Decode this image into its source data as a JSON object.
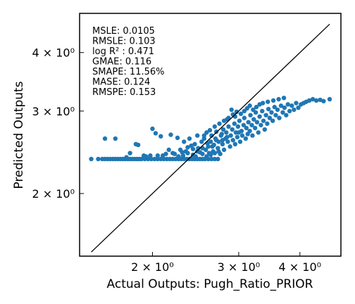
{
  "chart_data": {
    "type": "scatter",
    "xlabel": "Actual Outputs: Pugh_Ratio_PRIOR",
    "ylabel": "Predicted Outputs",
    "xscale": "log",
    "yscale": "log",
    "xlim": [
      1.42,
      4.85
    ],
    "ylim": [
      1.47,
      4.85
    ],
    "x_ticks": [
      {
        "value": 2,
        "label": "2 × 10⁰"
      },
      {
        "value": 3,
        "label": "3 × 10⁰"
      },
      {
        "value": 4,
        "label": "4 × 10⁰"
      }
    ],
    "y_ticks": [
      {
        "value": 2,
        "label": "2 × 10⁰"
      },
      {
        "value": 3,
        "label": "3 × 10⁰"
      },
      {
        "value": 4,
        "label": "4 × 10⁰"
      }
    ],
    "grid": false,
    "point_color": "#1f77b4",
    "line_color": "#000000",
    "identity_line": {
      "from": 1.5,
      "to": 4.6
    },
    "metrics": [
      "MSLE: 0.0105",
      "RMSLE: 0.103",
      "log R² : 0.471",
      "GMAE: 0.116",
      "SMAPE: 11.56%",
      "MASE: 0.124",
      "RMSPE: 0.153"
    ],
    "points": [
      [
        1.5,
        2.37
      ],
      [
        1.55,
        2.37
      ],
      [
        1.58,
        2.37
      ],
      [
        1.6,
        2.37
      ],
      [
        1.62,
        2.37
      ],
      [
        1.64,
        2.37
      ],
      [
        1.66,
        2.37
      ],
      [
        1.68,
        2.37
      ],
      [
        1.7,
        2.37
      ],
      [
        1.72,
        2.37
      ],
      [
        1.74,
        2.37
      ],
      [
        1.76,
        2.37
      ],
      [
        1.78,
        2.37
      ],
      [
        1.8,
        2.37
      ],
      [
        1.82,
        2.37
      ],
      [
        1.84,
        2.37
      ],
      [
        1.86,
        2.37
      ],
      [
        1.88,
        2.37
      ],
      [
        1.9,
        2.37
      ],
      [
        1.93,
        2.37
      ],
      [
        1.96,
        2.37
      ],
      [
        1.99,
        2.37
      ],
      [
        2.02,
        2.37
      ],
      [
        2.05,
        2.37
      ],
      [
        2.08,
        2.37
      ],
      [
        2.11,
        2.37
      ],
      [
        2.14,
        2.37
      ],
      [
        2.17,
        2.37
      ],
      [
        2.2,
        2.37
      ],
      [
        2.23,
        2.37
      ],
      [
        2.26,
        2.37
      ],
      [
        2.29,
        2.37
      ],
      [
        2.32,
        2.37
      ],
      [
        2.35,
        2.37
      ],
      [
        2.38,
        2.37
      ],
      [
        2.41,
        2.37
      ],
      [
        2.44,
        2.37
      ],
      [
        2.47,
        2.37
      ],
      [
        2.5,
        2.37
      ],
      [
        2.53,
        2.37
      ],
      [
        2.56,
        2.37
      ],
      [
        2.6,
        2.37
      ],
      [
        2.64,
        2.37
      ],
      [
        2.68,
        2.37
      ],
      [
        2.72,
        2.37
      ],
      [
        1.6,
        2.62
      ],
      [
        1.68,
        2.62
      ],
      [
        1.77,
        2.39
      ],
      [
        1.8,
        2.44
      ],
      [
        1.85,
        2.55
      ],
      [
        1.87,
        2.54
      ],
      [
        1.92,
        2.41
      ],
      [
        1.94,
        2.4
      ],
      [
        1.98,
        2.41
      ],
      [
        2.0,
        2.75
      ],
      [
        2.03,
        2.69
      ],
      [
        2.05,
        2.41
      ],
      [
        2.08,
        2.65
      ],
      [
        2.1,
        2.41
      ],
      [
        2.13,
        2.43
      ],
      [
        2.16,
        2.48
      ],
      [
        2.18,
        2.67
      ],
      [
        2.2,
        2.44
      ],
      [
        2.22,
        2.43
      ],
      [
        2.25,
        2.63
      ],
      [
        2.28,
        2.48
      ],
      [
        2.3,
        2.45
      ],
      [
        2.32,
        2.58
      ],
      [
        2.34,
        2.46
      ],
      [
        2.36,
        2.51
      ],
      [
        2.38,
        2.62
      ],
      [
        2.4,
        2.53
      ],
      [
        2.42,
        2.42
      ],
      [
        2.44,
        2.55
      ],
      [
        2.45,
        2.4
      ],
      [
        2.47,
        2.66
      ],
      [
        2.48,
        2.5
      ],
      [
        2.5,
        2.45
      ],
      [
        2.52,
        2.58
      ],
      [
        2.53,
        2.43
      ],
      [
        2.55,
        2.62
      ],
      [
        2.57,
        2.48
      ],
      [
        2.58,
        2.7
      ],
      [
        2.6,
        2.52
      ],
      [
        2.61,
        2.44
      ],
      [
        2.63,
        2.58
      ],
      [
        2.64,
        2.66
      ],
      [
        2.66,
        2.46
      ],
      [
        2.67,
        2.54
      ],
      [
        2.69,
        2.62
      ],
      [
        2.7,
        2.71
      ],
      [
        2.72,
        2.5
      ],
      [
        2.73,
        2.58
      ],
      [
        2.75,
        2.43
      ],
      [
        2.76,
        2.66
      ],
      [
        2.78,
        2.55
      ],
      [
        2.79,
        2.74
      ],
      [
        2.8,
        2.48
      ],
      [
        2.82,
        2.62
      ],
      [
        2.83,
        2.7
      ],
      [
        2.85,
        2.58
      ],
      [
        2.86,
        2.78
      ],
      [
        2.88,
        2.52
      ],
      [
        2.89,
        2.66
      ],
      [
        2.91,
        2.74
      ],
      [
        2.92,
        2.6
      ],
      [
        2.94,
        2.82
      ],
      [
        2.95,
        2.55
      ],
      [
        2.96,
        2.7
      ],
      [
        2.98,
        2.64
      ],
      [
        2.99,
        2.78
      ],
      [
        3.01,
        2.86
      ],
      [
        3.02,
        2.58
      ],
      [
        3.04,
        2.72
      ],
      [
        3.05,
        2.66
      ],
      [
        3.07,
        2.8
      ],
      [
        3.08,
        2.9
      ],
      [
        3.1,
        2.62
      ],
      [
        3.11,
        2.76
      ],
      [
        3.13,
        2.68
      ],
      [
        3.14,
        2.84
      ],
      [
        3.16,
        2.72
      ],
      [
        3.17,
        2.94
      ],
      [
        3.19,
        2.8
      ],
      [
        3.2,
        2.66
      ],
      [
        3.22,
        2.88
      ],
      [
        3.24,
        2.76
      ],
      [
        3.25,
        2.98
      ],
      [
        3.27,
        2.84
      ],
      [
        3.29,
        2.7
      ],
      [
        3.31,
        2.92
      ],
      [
        3.33,
        2.8
      ],
      [
        3.35,
        3.0
      ],
      [
        3.37,
        2.86
      ],
      [
        3.39,
        2.74
      ],
      [
        3.41,
        2.94
      ],
      [
        3.43,
        2.82
      ],
      [
        3.45,
        3.03
      ],
      [
        3.47,
        2.9
      ],
      [
        3.5,
        2.98
      ],
      [
        3.52,
        2.86
      ],
      [
        3.55,
        3.06
      ],
      [
        3.57,
        2.94
      ],
      [
        3.6,
        3.02
      ],
      [
        3.63,
        2.9
      ],
      [
        3.66,
        3.08
      ],
      [
        3.69,
        2.98
      ],
      [
        3.72,
        3.05
      ],
      [
        3.75,
        2.94
      ],
      [
        3.78,
        3.1
      ],
      [
        3.81,
        3.0
      ],
      [
        3.85,
        3.08
      ],
      [
        3.89,
        3.02
      ],
      [
        3.93,
        3.12
      ],
      [
        3.97,
        3.05
      ],
      [
        4.02,
        3.1
      ],
      [
        4.07,
        3.12
      ],
      [
        4.12,
        3.14
      ],
      [
        4.18,
        3.16
      ],
      [
        4.25,
        3.18
      ],
      [
        4.32,
        3.16
      ],
      [
        4.4,
        3.17
      ],
      [
        4.47,
        3.15
      ],
      [
        4.6,
        3.18
      ],
      [
        2.55,
        2.66
      ],
      [
        2.62,
        2.73
      ],
      [
        2.68,
        2.78
      ],
      [
        2.74,
        2.82
      ],
      [
        2.8,
        2.86
      ],
      [
        2.86,
        2.9
      ],
      [
        2.92,
        2.95
      ],
      [
        2.97,
        2.99
      ],
      [
        3.03,
        2.96
      ],
      [
        3.08,
        3.0
      ],
      [
        3.12,
        3.04
      ],
      [
        3.16,
        3.08
      ],
      [
        2.9,
        3.02
      ],
      [
        2.95,
        2.92
      ],
      [
        3.0,
        2.7
      ],
      [
        2.84,
        2.88
      ],
      [
        2.77,
        2.68
      ],
      [
        2.7,
        2.6
      ],
      [
        2.65,
        2.52
      ],
      [
        2.59,
        2.56
      ],
      [
        2.53,
        2.5
      ],
      [
        2.47,
        2.46
      ],
      [
        2.42,
        2.49
      ],
      [
        2.36,
        2.44
      ],
      [
        2.31,
        2.41
      ],
      [
        2.26,
        2.4
      ],
      [
        2.58,
        2.4
      ],
      [
        2.63,
        2.42
      ],
      [
        2.68,
        2.44
      ],
      [
        2.73,
        2.46
      ],
      [
        2.78,
        2.6
      ],
      [
        2.84,
        2.64
      ],
      [
        3.21,
        3.02
      ],
      [
        3.26,
        3.06
      ],
      [
        3.31,
        3.1
      ],
      [
        3.36,
        3.12
      ],
      [
        3.44,
        3.14
      ],
      [
        3.53,
        3.16
      ],
      [
        3.62,
        3.18
      ],
      [
        3.71,
        3.2
      ]
    ]
  }
}
